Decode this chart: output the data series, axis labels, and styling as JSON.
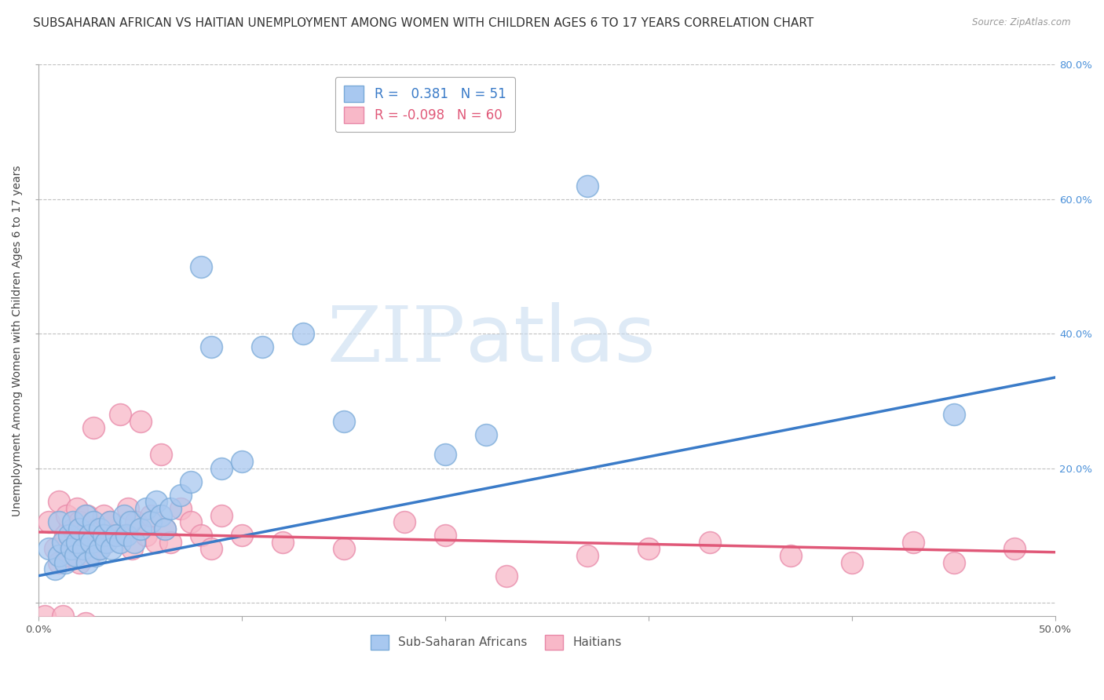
{
  "title": "SUBSAHARAN AFRICAN VS HAITIAN UNEMPLOYMENT AMONG WOMEN WITH CHILDREN AGES 6 TO 17 YEARS CORRELATION CHART",
  "source": "Source: ZipAtlas.com",
  "ylabel": "Unemployment Among Women with Children Ages 6 to 17 years",
  "xlim": [
    0.0,
    0.5
  ],
  "ylim": [
    -0.02,
    0.8
  ],
  "xticks": [
    0.0,
    0.1,
    0.2,
    0.3,
    0.4,
    0.5
  ],
  "xticklabels": [
    "0.0%",
    "",
    "",
    "",
    "",
    "50.0%"
  ],
  "yticks": [
    0.0,
    0.2,
    0.4,
    0.6,
    0.8
  ],
  "yticklabels_left": [
    "",
    "",
    "",
    "",
    ""
  ],
  "yticklabels_right": [
    "",
    "20.0%",
    "40.0%",
    "60.0%",
    "80.0%"
  ],
  "blue_color": "#A8C8F0",
  "blue_edge_color": "#7AAAD8",
  "pink_color": "#F8B8C8",
  "pink_edge_color": "#E888A8",
  "blue_line_color": "#3A7BC8",
  "pink_line_color": "#E05878",
  "blue_R": 0.381,
  "blue_N": 51,
  "pink_R": -0.098,
  "pink_N": 60,
  "legend_label_blue": "Sub-Saharan Africans",
  "legend_label_pink": "Haitians",
  "watermark_zip": "ZIP",
  "watermark_atlas": "atlas",
  "background_color": "#FFFFFF",
  "grid_color": "#BBBBBB",
  "title_fontsize": 11,
  "axis_fontsize": 10,
  "tick_fontsize": 9.5,
  "blue_scatter_x": [
    0.005,
    0.008,
    0.01,
    0.01,
    0.012,
    0.013,
    0.015,
    0.016,
    0.017,
    0.018,
    0.019,
    0.02,
    0.022,
    0.023,
    0.024,
    0.025,
    0.026,
    0.027,
    0.028,
    0.03,
    0.03,
    0.032,
    0.033,
    0.035,
    0.036,
    0.038,
    0.04,
    0.042,
    0.043,
    0.045,
    0.047,
    0.05,
    0.053,
    0.055,
    0.058,
    0.06,
    0.062,
    0.065,
    0.07,
    0.075,
    0.08,
    0.085,
    0.09,
    0.1,
    0.11,
    0.13,
    0.15,
    0.2,
    0.22,
    0.27,
    0.45
  ],
  "blue_scatter_y": [
    0.08,
    0.05,
    0.12,
    0.07,
    0.09,
    0.06,
    0.1,
    0.08,
    0.12,
    0.07,
    0.09,
    0.11,
    0.08,
    0.13,
    0.06,
    0.1,
    0.09,
    0.12,
    0.07,
    0.11,
    0.08,
    0.1,
    0.09,
    0.12,
    0.08,
    0.1,
    0.09,
    0.13,
    0.1,
    0.12,
    0.09,
    0.11,
    0.14,
    0.12,
    0.15,
    0.13,
    0.11,
    0.14,
    0.16,
    0.18,
    0.5,
    0.38,
    0.2,
    0.21,
    0.38,
    0.4,
    0.27,
    0.22,
    0.25,
    0.62,
    0.28
  ],
  "pink_scatter_x": [
    0.003,
    0.005,
    0.007,
    0.008,
    0.01,
    0.01,
    0.012,
    0.013,
    0.014,
    0.015,
    0.016,
    0.017,
    0.018,
    0.019,
    0.02,
    0.02,
    0.022,
    0.023,
    0.024,
    0.025,
    0.026,
    0.027,
    0.028,
    0.03,
    0.032,
    0.033,
    0.035,
    0.037,
    0.038,
    0.04,
    0.042,
    0.044,
    0.046,
    0.048,
    0.05,
    0.053,
    0.055,
    0.058,
    0.06,
    0.062,
    0.065,
    0.07,
    0.075,
    0.08,
    0.085,
    0.09,
    0.1,
    0.12,
    0.15,
    0.18,
    0.2,
    0.23,
    0.27,
    0.3,
    0.33,
    0.37,
    0.4,
    0.43,
    0.45,
    0.48
  ],
  "pink_scatter_y": [
    -0.02,
    0.12,
    -0.04,
    0.08,
    0.15,
    0.06,
    -0.02,
    0.1,
    0.13,
    0.07,
    -0.05,
    0.11,
    0.08,
    0.14,
    0.06,
    0.12,
    0.1,
    -0.03,
    0.13,
    0.07,
    0.09,
    0.26,
    0.11,
    0.08,
    0.13,
    0.09,
    0.12,
    0.1,
    -0.04,
    0.28,
    0.1,
    0.14,
    0.08,
    0.12,
    0.27,
    0.1,
    0.13,
    0.09,
    0.22,
    0.11,
    0.09,
    0.14,
    0.12,
    0.1,
    0.08,
    0.13,
    0.1,
    0.09,
    0.08,
    0.12,
    0.1,
    0.04,
    0.07,
    0.08,
    0.09,
    0.07,
    0.06,
    0.09,
    0.06,
    0.08
  ],
  "blue_line_x0": 0.0,
  "blue_line_y0": 0.04,
  "blue_line_x1": 0.5,
  "blue_line_y1": 0.335,
  "pink_line_x0": 0.0,
  "pink_line_y0": 0.105,
  "pink_line_x1": 0.5,
  "pink_line_y1": 0.075
}
